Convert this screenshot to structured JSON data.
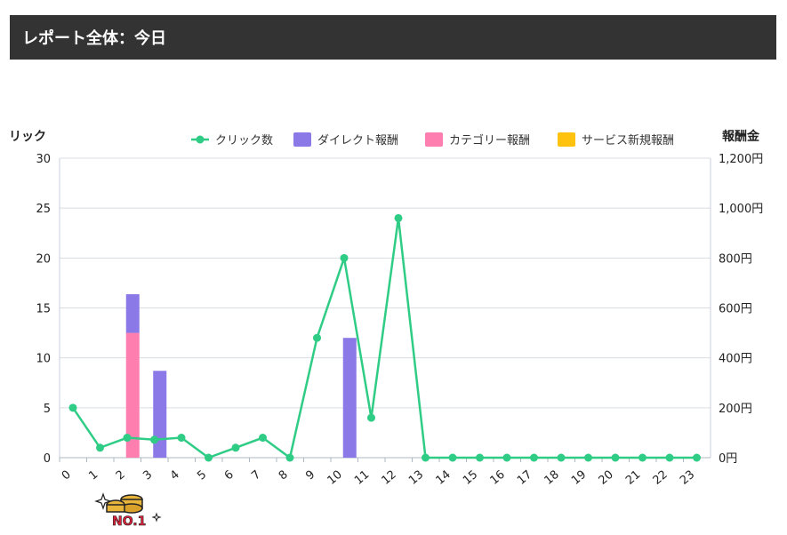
{
  "header": {
    "title": "レポート全体：今日"
  },
  "chart_data": {
    "type": "bar+line",
    "left_axis": {
      "label": "クリック数",
      "visible_label": "リック",
      "ylim": [
        0,
        30
      ],
      "ticks": [
        "0",
        "5",
        "10",
        "15",
        "20",
        "25",
        "30"
      ]
    },
    "right_axis": {
      "label": "報酬金",
      "ylim": [
        0,
        1200
      ],
      "ticks": [
        "0円",
        "200円",
        "400円",
        "600円",
        "800円",
        "1,000円",
        "1,200円"
      ]
    },
    "categories": [
      "0",
      "1",
      "2",
      "3",
      "4",
      "5",
      "6",
      "7",
      "8",
      "9",
      "10",
      "11",
      "12",
      "13",
      "14",
      "15",
      "16",
      "17",
      "18",
      "19",
      "20",
      "21",
      "22",
      "23"
    ],
    "legend": [
      {
        "name": "クリック数",
        "color": "#2fcc85",
        "kind": "line"
      },
      {
        "name": "ダイレクト報酬",
        "color": "#8a79e6",
        "kind": "bar"
      },
      {
        "name": "カテゴリー報酬",
        "color": "#ff7eb0",
        "kind": "bar"
      },
      {
        "name": "サービス新規報酬",
        "color": "#ffc20e",
        "kind": "bar"
      }
    ],
    "series": [
      {
        "name": "クリック数",
        "axis": "left",
        "values": [
          5,
          1,
          2,
          1.8,
          2,
          0,
          1,
          2,
          0,
          12,
          20,
          4,
          24,
          0,
          0,
          0,
          0,
          0,
          0,
          0,
          0,
          0,
          0,
          0
        ]
      },
      {
        "name": "ダイレクト報酬",
        "axis": "right",
        "values": [
          0,
          0,
          155,
          348,
          0,
          0,
          0,
          0,
          0,
          0,
          480,
          0,
          0,
          0,
          0,
          0,
          0,
          0,
          0,
          0,
          0,
          0,
          0,
          0
        ]
      },
      {
        "name": "カテゴリー報酬",
        "axis": "right",
        "values": [
          0,
          0,
          500,
          0,
          0,
          0,
          0,
          0,
          0,
          0,
          0,
          0,
          0,
          0,
          0,
          0,
          0,
          0,
          0,
          0,
          0,
          0,
          0,
          0
        ]
      },
      {
        "name": "サービス新規報酬",
        "axis": "right",
        "values": [
          0,
          0,
          0,
          0,
          0,
          0,
          0,
          0,
          0,
          0,
          0,
          0,
          0,
          0,
          0,
          0,
          0,
          0,
          0,
          0,
          0,
          0,
          0,
          0
        ]
      }
    ]
  },
  "badge": {
    "text": "NO.1"
  }
}
